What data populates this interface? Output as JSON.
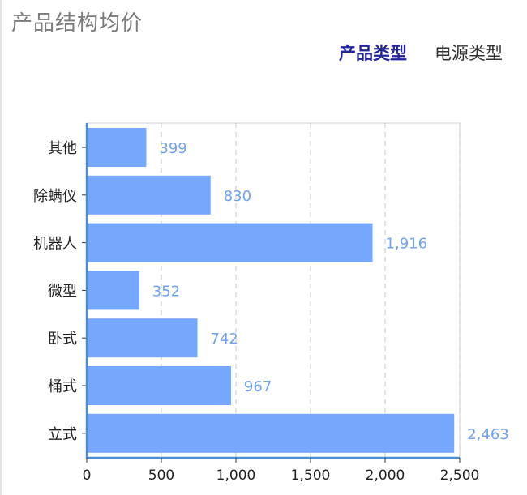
{
  "header": {
    "title": "产品结构均价"
  },
  "tabs": [
    {
      "label": "产品类型",
      "active": true
    },
    {
      "label": "电源类型",
      "active": false
    }
  ],
  "colors": {
    "bar": "#75a7fc",
    "value_label": "#6fa3f2",
    "tab_active": "#23239a",
    "axis": "#4a8fd6"
  },
  "chart_data": {
    "type": "bar",
    "orientation": "horizontal",
    "categories": [
      "其他",
      "除螨仪",
      "机器人",
      "微型",
      "卧式",
      "桶式",
      "立式"
    ],
    "values": [
      399,
      830,
      1916,
      352,
      742,
      967,
      2463
    ],
    "value_labels": [
      "399",
      "830",
      "1,916",
      "352",
      "742",
      "967",
      "2,463"
    ],
    "xlim": [
      0,
      2500
    ],
    "x_ticks": [
      0,
      500,
      1000,
      1500,
      2000,
      2500
    ],
    "x_tick_labels": [
      "0",
      "500",
      "1,000",
      "1,500",
      "2,000",
      "2,500"
    ],
    "grid": "vertical dashed"
  }
}
